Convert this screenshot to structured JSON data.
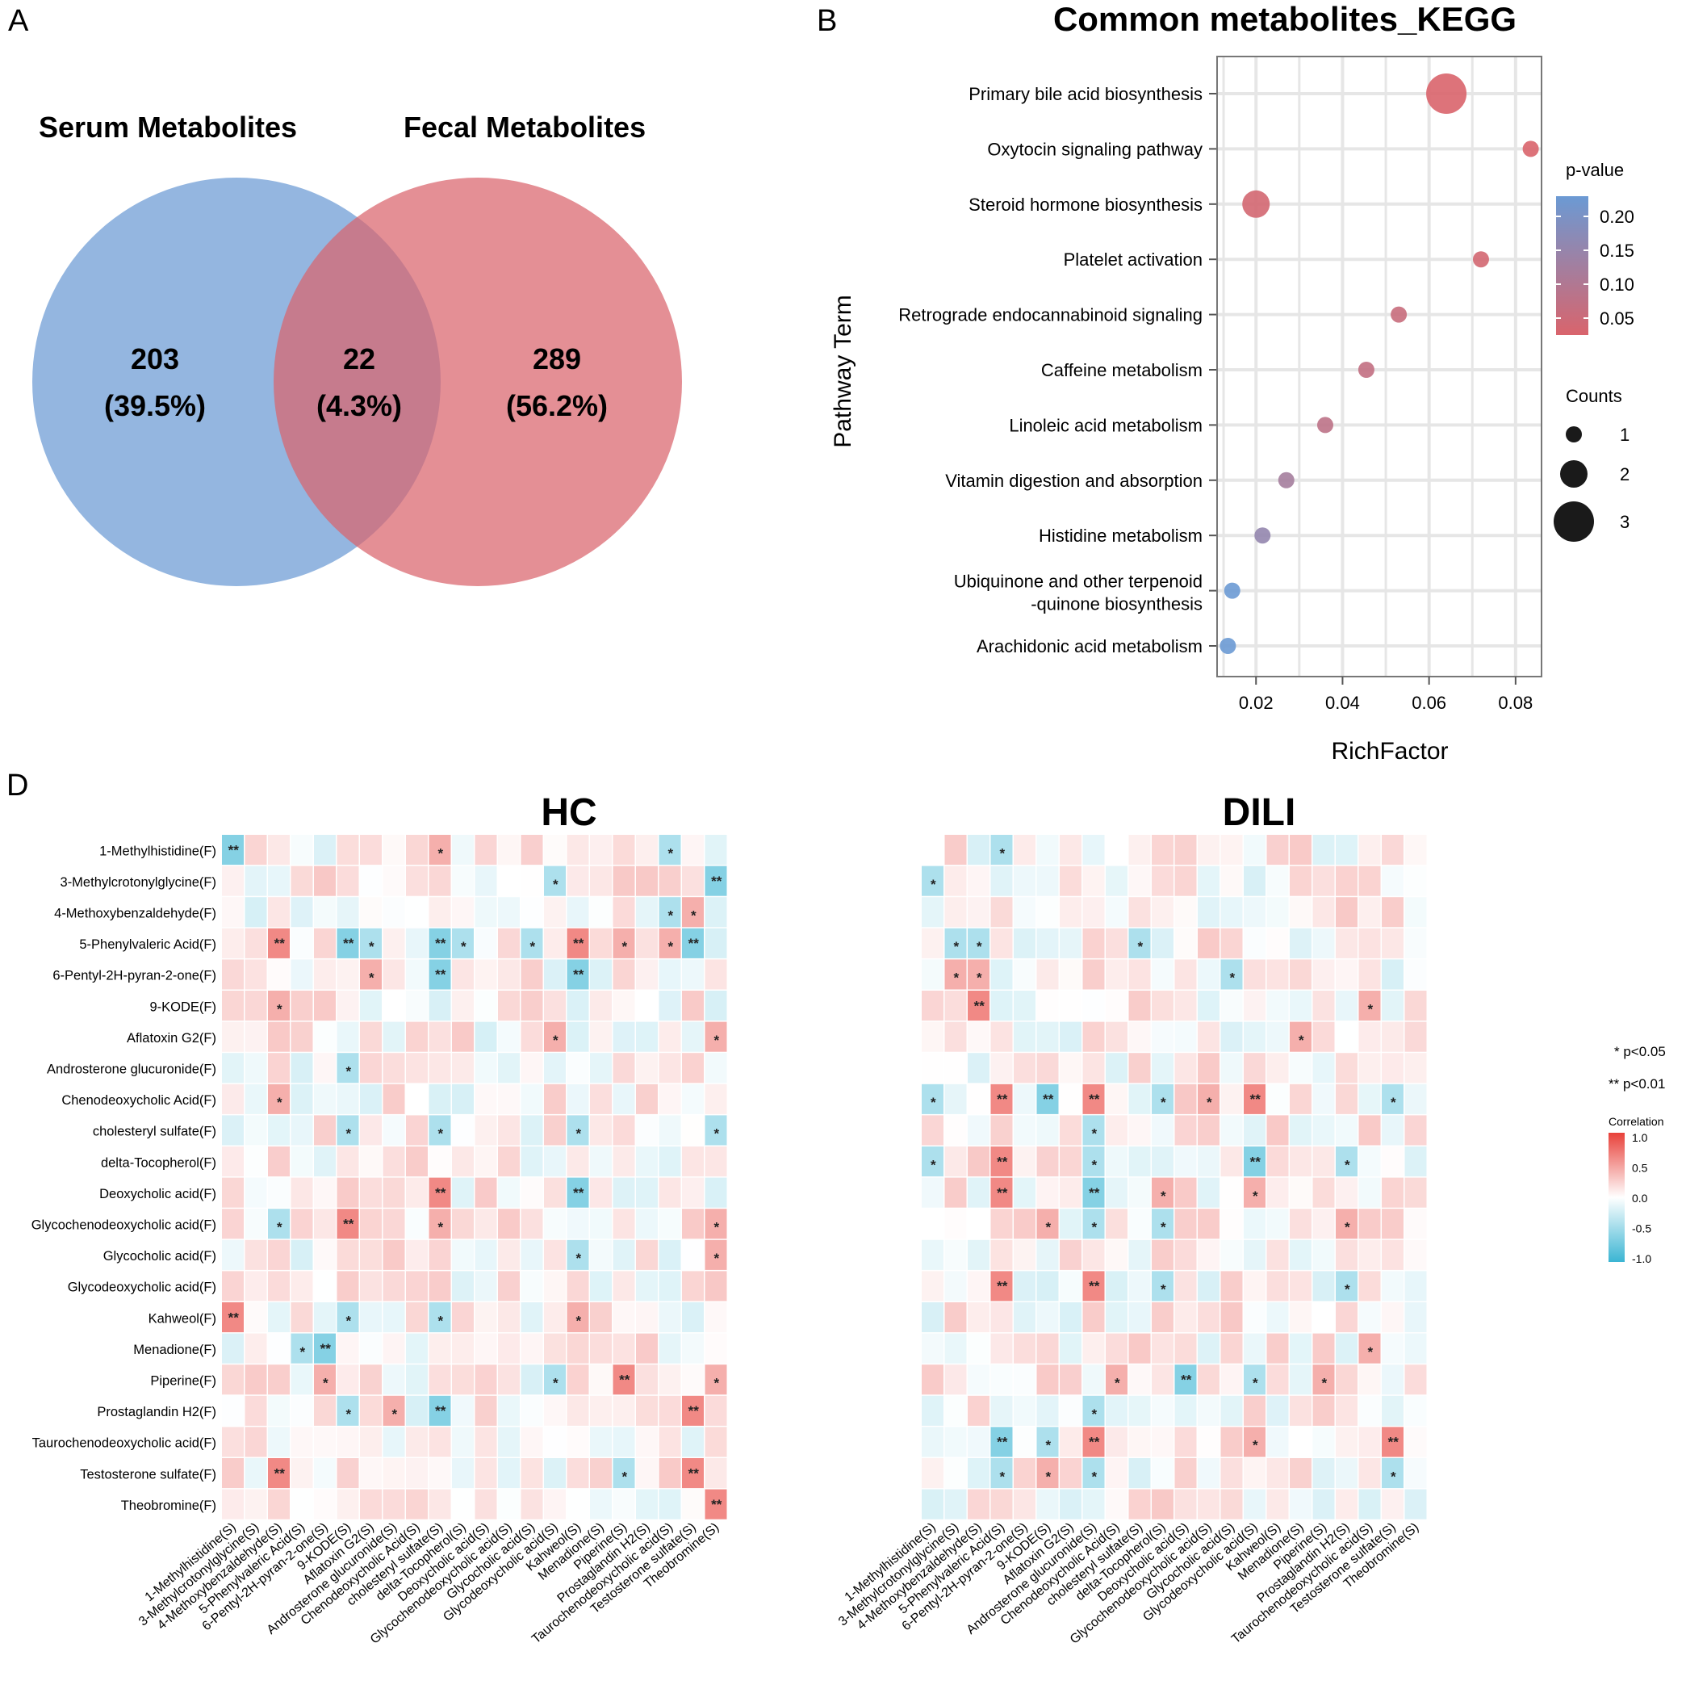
{
  "panels": {
    "a": "A",
    "b": "B",
    "d": "D"
  },
  "venn": {
    "left_label": "Serum Metabolites",
    "right_label": "Fecal Metabolites",
    "left_count": "203",
    "left_pct": "(39.5%)",
    "overlap_count": "22",
    "overlap_pct": "(4.3%)",
    "right_count": "289",
    "right_pct": "(56.2%)",
    "colors": {
      "left": "#6b9ad4",
      "right": "#d9646c"
    }
  },
  "chart_data": [
    {
      "type": "scatter",
      "title": "Common metabolites_KEGG",
      "xlabel": "RichFactor",
      "ylabel": "Pathway Term",
      "xlim": [
        0.011,
        0.086
      ],
      "xticks": [
        "0.02",
        "0.04",
        "0.06",
        "0.08"
      ],
      "xtick_values": [
        0.02,
        0.04,
        0.06,
        0.08
      ],
      "categories": [
        "Primary bile acid biosynthesis",
        "Oxytocin signaling pathway",
        "Steroid hormone biosynthesis",
        "Platelet activation",
        "Retrograde endocannabinoid signaling",
        "Caffeine metabolism",
        "Linoleic acid metabolism",
        "Vitamin digestion and absorption",
        "Histidine metabolism",
        "Ubiquinone and other terpenoid -quinone biosynthesis",
        "Arachidonic acid metabolism"
      ],
      "category_lines": [
        [
          "Primary bile acid biosynthesis"
        ],
        [
          "Oxytocin signaling pathway"
        ],
        [
          "Steroid hormone biosynthesis"
        ],
        [
          "Platelet activation"
        ],
        [
          "Retrograde endocannabinoid signaling"
        ],
        [
          "Caffeine metabolism"
        ],
        [
          "Linoleic acid metabolism"
        ],
        [
          "Vitamin digestion and absorption"
        ],
        [
          "Histidine metabolism"
        ],
        [
          "Ubiquinone and other terpenoid",
          "-quinone biosynthesis"
        ],
        [
          "Arachidonic acid metabolism"
        ]
      ],
      "rich_factor": [
        0.064,
        0.0835,
        0.02,
        0.072,
        0.053,
        0.0455,
        0.036,
        0.027,
        0.0215,
        0.0145,
        0.0135
      ],
      "counts": [
        3,
        1,
        2,
        1,
        1,
        1,
        1,
        1,
        1,
        1,
        1
      ],
      "p_value": [
        0.02,
        0.03,
        0.04,
        0.04,
        0.06,
        0.07,
        0.08,
        0.12,
        0.15,
        0.22,
        0.23
      ],
      "legend": {
        "color_title": "p-value",
        "color_ticks": [
          "0.20",
          "0.15",
          "0.10",
          "0.05"
        ],
        "color_tick_values": [
          0.2,
          0.15,
          0.1,
          0.05
        ],
        "size_title": "Counts",
        "size_ticks": [
          "1",
          "2",
          "3"
        ],
        "size_values": [
          1,
          2,
          3
        ]
      },
      "colors": {
        "low_p": "#d9646c",
        "high_p": "#6b9ad4"
      }
    },
    {
      "type": "heatmap",
      "titles": [
        "HC",
        "DILI"
      ],
      "rows": [
        "1-Methylhistidine(F)",
        "3-Methylcrotonylglycine(F)",
        "4-Methoxybenzaldehyde(F)",
        "5-Phenylvaleric Acid(F)",
        "6-Pentyl-2H-pyran-2-one(F)",
        "9-KODE(F)",
        "Aflatoxin G2(F)",
        "Androsterone glucuronide(F)",
        "Chenodeoxycholic Acid(F)",
        "cholesteryl sulfate(F)",
        "delta-Tocopherol(F)",
        "Deoxycholic acid(F)",
        "Glycochenodeoxycholic acid(F)",
        "Glycocholic acid(F)",
        "Glycodeoxycholic acid(F)",
        "Kahweol(F)",
        "Menadione(F)",
        "Piperine(F)",
        "Prostaglandin H2(F)",
        "Taurochenodeoxycholic acid(F)",
        "Testosterone sulfate(F)",
        "Theobromine(F)"
      ],
      "columns": [
        "1-Methylhistidine(S)",
        "3-Methylcrotonylglycine(S)",
        "4-Methoxybenzaldehyde(S)",
        "5-Phenylvaleric Acid(S)",
        "6-Pentyl-2H-pyran-2-one(S)",
        "9-KODE(S)",
        "Aflatoxin G2(S)",
        "Androsterone glucuronide(S)",
        "Chenodeoxycholic Acid(S)",
        "cholesteryl sulfate(S)",
        "delta-Tocopherol(S)",
        "Deoxycholic acid(S)",
        "Glycochenodeoxycholic acid(S)",
        "Glycocholic acid(S)",
        "Glycodeoxycholic acid(S)",
        "Kahweol(S)",
        "Menadione(S)",
        "Piperine(S)",
        "Prostaglandin H2(S)",
        "Taurochenodeoxycholic acid(S)",
        "Testosterone sulfate(S)",
        "Theobromine(S)"
      ],
      "significance": {
        "HC": [
          [
            [
              0,
              0,
              "**"
            ],
            [
              0,
              9,
              "*"
            ],
            [
              0,
              19,
              "*"
            ]
          ],
          [
            [
              1,
              14,
              "*"
            ],
            [
              1,
              21,
              "**"
            ]
          ],
          [
            [
              2,
              19,
              "*"
            ],
            [
              2,
              20,
              "*"
            ]
          ],
          [
            [
              3,
              2,
              "**"
            ],
            [
              3,
              5,
              "**"
            ],
            [
              3,
              6,
              "*"
            ],
            [
              3,
              9,
              "**"
            ],
            [
              3,
              10,
              "*"
            ],
            [
              3,
              13,
              "*"
            ],
            [
              3,
              15,
              "**"
            ],
            [
              3,
              17,
              "*"
            ],
            [
              3,
              19,
              "*"
            ],
            [
              3,
              20,
              "**"
            ]
          ],
          [
            [
              4,
              6,
              "*"
            ],
            [
              4,
              9,
              "**"
            ],
            [
              4,
              15,
              "**"
            ]
          ],
          [
            [
              5,
              2,
              "*"
            ]
          ],
          [
            [
              6,
              14,
              "*"
            ],
            [
              6,
              21,
              "*"
            ]
          ],
          [
            [
              7,
              5,
              "*"
            ]
          ],
          [
            [
              8,
              2,
              "*"
            ]
          ],
          [
            [
              9,
              5,
              "*"
            ],
            [
              9,
              9,
              "*"
            ],
            [
              9,
              15,
              "*"
            ],
            [
              9,
              21,
              "*"
            ]
          ],
          [],
          [
            [
              11,
              9,
              "**"
            ],
            [
              11,
              15,
              "**"
            ]
          ],
          [
            [
              12,
              2,
              "*"
            ],
            [
              12,
              5,
              "**"
            ],
            [
              12,
              9,
              "*"
            ],
            [
              12,
              21,
              "*"
            ]
          ],
          [
            [
              13,
              15,
              "*"
            ],
            [
              13,
              21,
              "*"
            ]
          ],
          [],
          [
            [
              15,
              0,
              "**"
            ],
            [
              15,
              5,
              "*"
            ],
            [
              15,
              9,
              "*"
            ],
            [
              15,
              15,
              "*"
            ]
          ],
          [
            [
              16,
              3,
              "*"
            ],
            [
              16,
              4,
              "**"
            ]
          ],
          [
            [
              17,
              4,
              "*"
            ],
            [
              17,
              14,
              "*"
            ],
            [
              17,
              17,
              "**"
            ],
            [
              17,
              21,
              "*"
            ]
          ],
          [
            [
              18,
              5,
              "*"
            ],
            [
              18,
              7,
              "*"
            ],
            [
              18,
              9,
              "**"
            ],
            [
              18,
              20,
              "**"
            ]
          ],
          [],
          [
            [
              20,
              2,
              "**"
            ],
            [
              20,
              17,
              "*"
            ],
            [
              20,
              20,
              "**"
            ]
          ],
          [
            [
              21,
              21,
              "**"
            ]
          ]
        ],
        "DILI": [
          [
            [
              0,
              3,
              "*"
            ]
          ],
          [
            [
              1,
              0,
              "*"
            ]
          ],
          [],
          [
            [
              3,
              1,
              "*"
            ],
            [
              3,
              2,
              "*"
            ],
            [
              3,
              9,
              "*"
            ]
          ],
          [
            [
              4,
              1,
              "*"
            ],
            [
              4,
              2,
              "*"
            ],
            [
              4,
              13,
              "*"
            ]
          ],
          [
            [
              5,
              2,
              "**"
            ],
            [
              5,
              19,
              "*"
            ]
          ],
          [
            [
              6,
              16,
              "*"
            ]
          ],
          [],
          [
            [
              8,
              0,
              "*"
            ],
            [
              8,
              3,
              "**"
            ],
            [
              8,
              5,
              "**"
            ],
            [
              8,
              7,
              "**"
            ],
            [
              8,
              10,
              "*"
            ],
            [
              8,
              12,
              "*"
            ],
            [
              8,
              14,
              "**"
            ],
            [
              8,
              20,
              "*"
            ]
          ],
          [
            [
              9,
              7,
              "*"
            ]
          ],
          [
            [
              10,
              0,
              "*"
            ],
            [
              10,
              3,
              "**"
            ],
            [
              10,
              7,
              "*"
            ],
            [
              10,
              14,
              "**"
            ],
            [
              10,
              18,
              "*"
            ]
          ],
          [
            [
              11,
              3,
              "**"
            ],
            [
              11,
              7,
              "**"
            ],
            [
              11,
              10,
              "*"
            ],
            [
              11,
              14,
              "*"
            ]
          ],
          [
            [
              12,
              5,
              "*"
            ],
            [
              12,
              7,
              "*"
            ],
            [
              12,
              10,
              "*"
            ],
            [
              12,
              18,
              "*"
            ]
          ],
          [],
          [
            [
              14,
              3,
              "**"
            ],
            [
              14,
              7,
              "**"
            ],
            [
              14,
              10,
              "*"
            ],
            [
              14,
              18,
              "*"
            ]
          ],
          [],
          [
            [
              16,
              19,
              "*"
            ]
          ],
          [
            [
              17,
              8,
              "*"
            ],
            [
              17,
              11,
              "**"
            ],
            [
              17,
              14,
              "*"
            ],
            [
              17,
              17,
              "*"
            ]
          ],
          [
            [
              18,
              7,
              "*"
            ]
          ],
          [
            [
              19,
              3,
              "**"
            ],
            [
              19,
              5,
              "*"
            ],
            [
              19,
              7,
              "**"
            ],
            [
              19,
              14,
              "*"
            ],
            [
              19,
              20,
              "**"
            ]
          ],
          [
            [
              20,
              3,
              "*"
            ],
            [
              20,
              5,
              "*"
            ],
            [
              20,
              7,
              "*"
            ],
            [
              20,
              20,
              "*"
            ]
          ],
          []
        ]
      },
      "legend": {
        "sig1": "* p<0.05",
        "sig2": "** p<0.01",
        "color_title": "Correlation",
        "color_ticks": [
          "1.0",
          "0.5",
          "0.0",
          "-0.5",
          "-1.0"
        ],
        "color_tick_values": [
          1.0,
          0.5,
          0.0,
          -0.5,
          -1.0
        ]
      },
      "colors": {
        "pos": "#e8413a",
        "neg": "#3bb5d3",
        "zero": "#ffffff"
      }
    }
  ]
}
